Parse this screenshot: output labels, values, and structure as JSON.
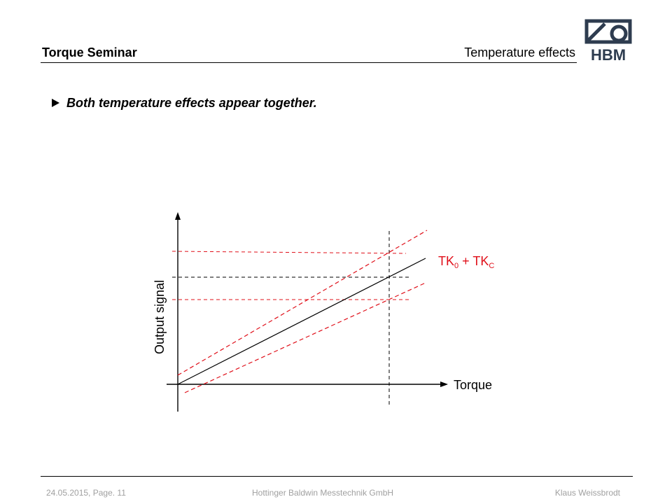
{
  "header": {
    "title": "Torque Seminar",
    "topic": "Temperature effects",
    "logo_text": "HBM"
  },
  "bullet": {
    "icon": "triangle-right-icon",
    "text": "Both temperature effects appear together."
  },
  "diagram": {
    "axis_y_label": "Output signal",
    "axis_x_label": "Torque",
    "curve_label_main": "TK",
    "curve_label_sub1": "0",
    "curve_label_join": " + TK",
    "curve_label_sub2": "C",
    "colors": {
      "nominal_line": "#000000",
      "offset_lines": "#e0101a",
      "curve_label": "#e0101a"
    }
  },
  "footer": {
    "date_page": "24.05.2015, Page. 11",
    "company": "Hottinger Baldwin Messtechnik GmbH",
    "author": "Klaus Weissbrodt"
  }
}
